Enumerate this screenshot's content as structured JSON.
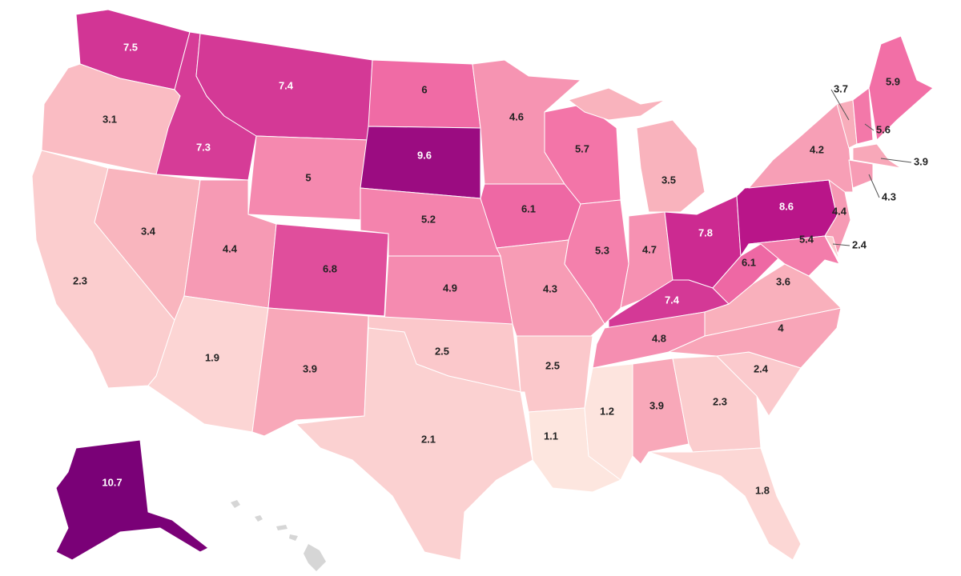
{
  "chart_data": {
    "type": "choropleth",
    "values": [
      7.5,
      3.1,
      2.3,
      7.3,
      3.4,
      7.4,
      5,
      4.4,
      1.9,
      6.8,
      3.9,
      6,
      9.6,
      5.2,
      4.9,
      2.5,
      2.1,
      4.6,
      6.1,
      4.3,
      2.5,
      1.1,
      5.7,
      5.3,
      3.5,
      4.7,
      7.8,
      7.4,
      4.8,
      1.2,
      3.9,
      2.3,
      1.8,
      2.4,
      4,
      3.6,
      6.1,
      8.6,
      4.2,
      4.4,
      5.4,
      2.4,
      3.7,
      5.6,
      5.9,
      3.9,
      4.3,
      10.7
    ],
    "colors": [
      "#fde6df",
      "#f9b3bd",
      "#f26fa6",
      "#c2188c",
      "#7a0177"
    ],
    "missing_color": "#d6d6d6"
  }
}
